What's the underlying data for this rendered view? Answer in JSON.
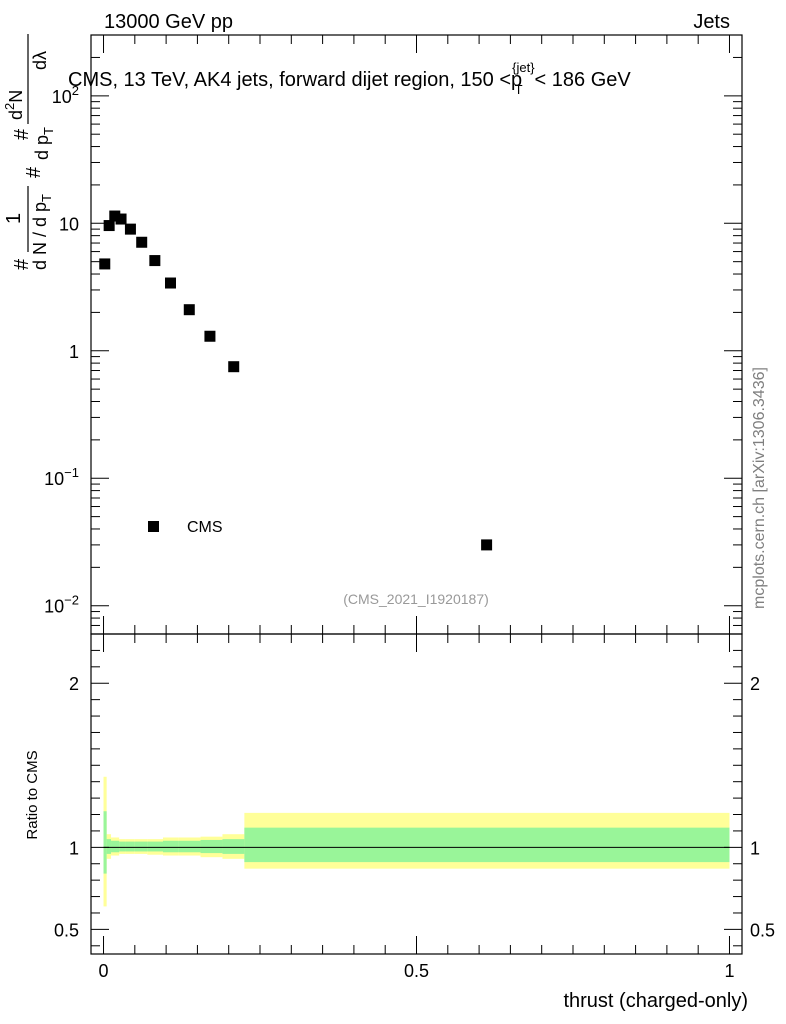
{
  "header": {
    "energy_label": "13000 GeV pp",
    "category_label": "Jets"
  },
  "side_label": "mcplots.cern.ch [arXiv:1306.3436]",
  "analysis_id": "(CMS_2021_I1920187)",
  "main_title": {
    "prefix": "CMS, 13 TeV, AK4 jets, forward dijet region, 150 <",
    "p": "p",
    "sup": "{jet}",
    "sub": "T",
    "suffix": "< 186 GeV"
  },
  "y_label_parts": {
    "hash": "#",
    "one": "1",
    "den": "d N / d p",
    "den_sub": "T",
    "hash2": "#",
    "num_d": "d p",
    "num_sub": "T",
    "hash3": "#",
    "d2n": "d",
    "d2n_sup": "2",
    "d2n_n": "N",
    "dlambda": "dλ"
  },
  "colors": {
    "marker": "#000000",
    "band_inner": "#99f599",
    "band_outer": "#ffff99",
    "ratio_line": "#000000"
  },
  "chart_data": {
    "type": "scatter",
    "title": "CMS, 13 TeV, AK4 jets, forward dijet region, 150 < p_T^{jet} < 186 GeV",
    "xlabel": "thrust (charged-only)",
    "ylabel": "1 / (dN/dpT) · d²N/(dpT dλ)",
    "ratio_ylabel": "Ratio to CMS",
    "xlim": [
      -0.02,
      1.02
    ],
    "ylim": [
      0.006,
      300
    ],
    "yscale": "log",
    "ratio_ylim": [
      0.35,
      2.3
    ],
    "x_ticks": [
      0,
      0.5,
      1
    ],
    "x_tick_labels": [
      "0",
      "0.5",
      "1"
    ],
    "y_ticks": [
      {
        "value": 0.01,
        "base": "10",
        "exp": "−2"
      },
      {
        "value": 0.1,
        "base": "10",
        "exp": "−1"
      },
      {
        "value": 1,
        "base": "1",
        "exp": ""
      },
      {
        "value": 10,
        "base": "10",
        "exp": ""
      },
      {
        "value": 100,
        "base": "10",
        "exp": "2"
      }
    ],
    "ratio_y_ticks": [
      0.5,
      1,
      2
    ],
    "ratio_y_tick_labels": [
      "0.5",
      "1",
      "2"
    ],
    "legend": {
      "label": "CMS",
      "position": "lower-left"
    },
    "series": [
      {
        "name": "CMS",
        "x": [
          0.002,
          0.009,
          0.018,
          0.028,
          0.043,
          0.061,
          0.082,
          0.107,
          0.137,
          0.17,
          0.208,
          0.612
        ],
        "y": [
          4.8,
          9.6,
          11.4,
          10.8,
          9.0,
          7.1,
          5.1,
          3.4,
          2.1,
          1.3,
          0.75,
          0.03
        ]
      }
    ],
    "ratio_bands": {
      "edges": [
        0.0,
        0.005,
        0.012,
        0.025,
        0.035,
        0.05,
        0.07,
        0.095,
        0.12,
        0.155,
        0.19,
        0.225,
        1.0
      ],
      "inner_low": [
        0.84,
        0.96,
        0.97,
        0.975,
        0.975,
        0.975,
        0.975,
        0.97,
        0.97,
        0.965,
        0.96,
        0.91
      ],
      "inner_high": [
        1.22,
        1.05,
        1.04,
        1.035,
        1.035,
        1.035,
        1.035,
        1.04,
        1.04,
        1.045,
        1.05,
        1.12
      ],
      "outer_low": [
        0.64,
        0.93,
        0.95,
        0.96,
        0.96,
        0.96,
        0.955,
        0.95,
        0.95,
        0.94,
        0.93,
        0.87
      ],
      "outer_high": [
        1.43,
        1.08,
        1.06,
        1.05,
        1.05,
        1.05,
        1.05,
        1.06,
        1.06,
        1.065,
        1.08,
        1.21
      ]
    }
  }
}
